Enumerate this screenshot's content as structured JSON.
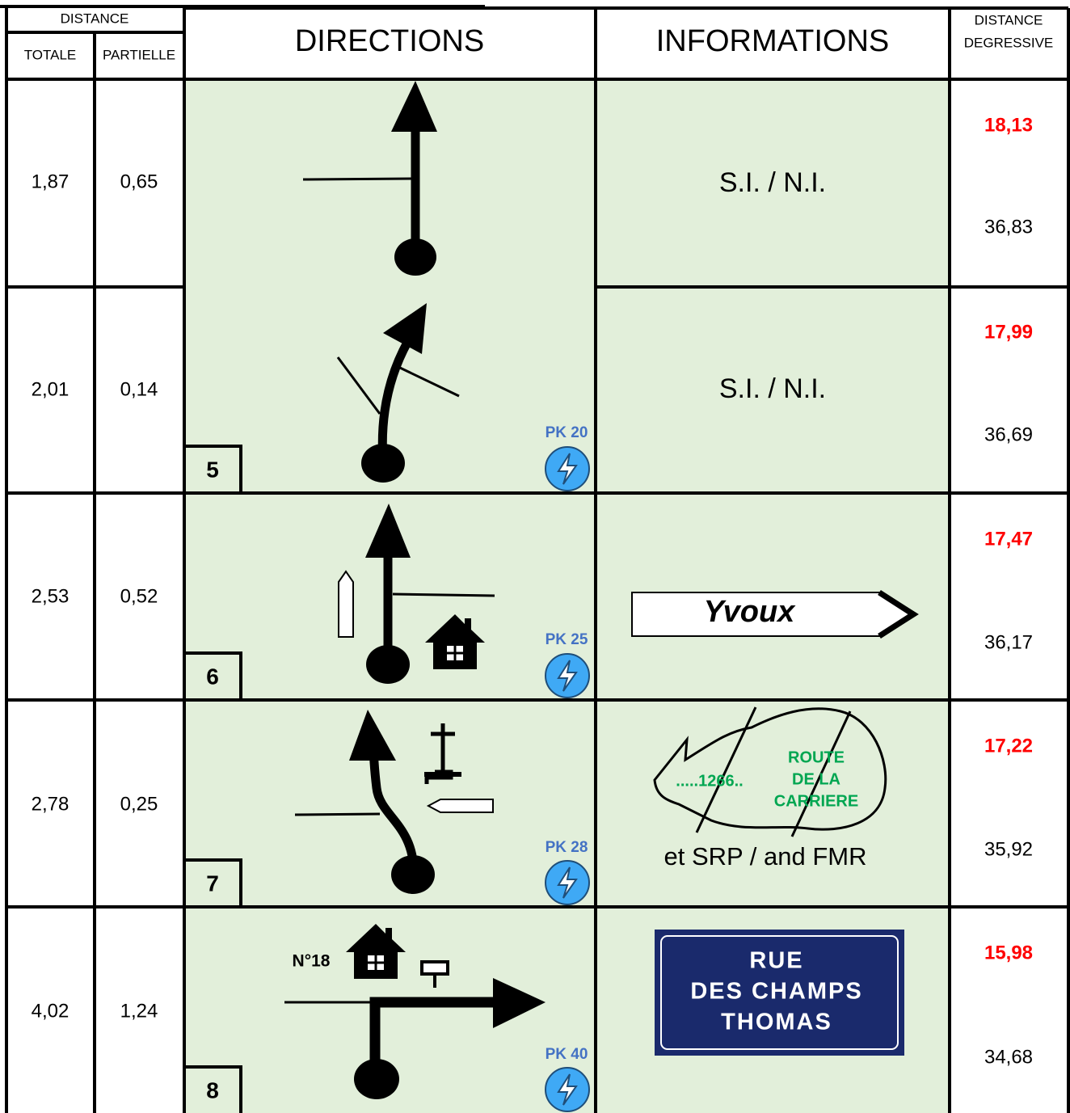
{
  "header": {
    "distance": "DISTANCE",
    "totale": "TOTALE",
    "partielle": "PARTIELLE",
    "directions": "DIRECTIONS",
    "informations": "INFORMATIONS",
    "degressive": [
      "DISTANCE",
      "DEGRESSIVE"
    ]
  },
  "rows": [
    {
      "totale": "1,87",
      "partielle": "0,65",
      "info": "S.I. / N.I.",
      "remaining_red": "18,13",
      "remaining": "36,83"
    },
    {
      "totale": "2,01",
      "partielle": "0,14",
      "step": "5",
      "pk": "PK 20",
      "info": "S.I. / N.I.",
      "remaining_red": "17,99",
      "remaining": "36,69"
    },
    {
      "totale": "2,53",
      "partielle": "0,52",
      "step": "6",
      "pk": "PK 25",
      "sign": "Yvoux",
      "remaining_red": "17,47",
      "remaining": "36,17"
    },
    {
      "totale": "2,78",
      "partielle": "0,25",
      "step": "7",
      "pk": "PK 28",
      "sign": [
        ".....1266..",
        "ROUTE",
        "DE LA",
        "CARRIERE"
      ],
      "info": "et SRP / and FMR",
      "remaining_red": "17,22",
      "remaining": "35,92"
    },
    {
      "totale": "4,02",
      "partielle": "1,24",
      "step": "8",
      "pk": "PK 40",
      "label": "N°18",
      "sign": [
        "RUE",
        "DES CHAMPS",
        "THOMAS"
      ],
      "remaining_red": "15,98",
      "remaining": "34,68"
    }
  ]
}
